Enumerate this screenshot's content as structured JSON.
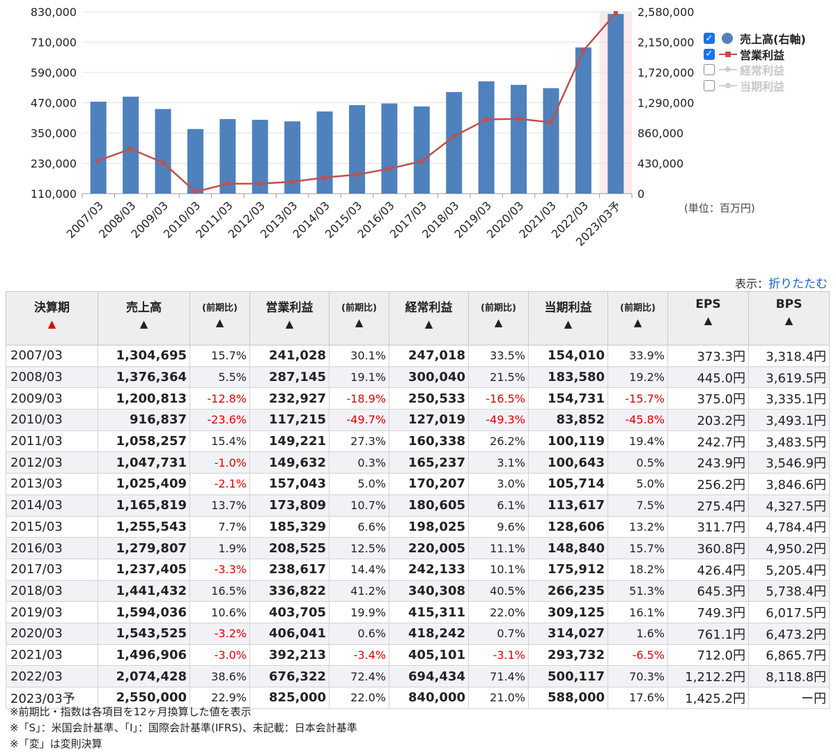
{
  "chart_data": {
    "type": "bar+line",
    "categories": [
      "2007/03",
      "2008/03",
      "2009/03",
      "2010/03",
      "2011/03",
      "2012/03",
      "2013/03",
      "2014/03",
      "2015/03",
      "2016/03",
      "2017/03",
      "2018/03",
      "2019/03",
      "2020/03",
      "2021/03",
      "2022/03",
      "2023/03予"
    ],
    "series": [
      {
        "name": "売上高(右軸)",
        "type": "bar",
        "axis": "right",
        "color": "#4f81bd",
        "visible": true,
        "values": [
          1304695,
          1376364,
          1200813,
          916837,
          1058257,
          1047731,
          1025409,
          1165819,
          1255543,
          1279807,
          1237405,
          1441432,
          1594036,
          1543525,
          1496906,
          2074428,
          2550000
        ]
      },
      {
        "name": "営業利益",
        "type": "line",
        "axis": "left",
        "color": "#c0504d",
        "visible": true,
        "values": [
          241028,
          287145,
          232927,
          117215,
          149221,
          149632,
          157043,
          173809,
          185329,
          208525,
          238617,
          336822,
          403705,
          406041,
          392213,
          676322,
          825000
        ]
      },
      {
        "name": "経常利益",
        "type": "line",
        "axis": "left",
        "color": "#c8c8c8",
        "visible": false
      },
      {
        "name": "当期利益",
        "type": "line",
        "axis": "left",
        "color": "#c8c8c8",
        "visible": false
      }
    ],
    "left_axis": {
      "ticks": [
        "830,000",
        "710,000",
        "590,000",
        "470,000",
        "350,000",
        "230,000",
        "110,000"
      ],
      "range": [
        110000,
        830000
      ]
    },
    "right_axis": {
      "ticks": [
        "2,580,000",
        "2,150,000",
        "1,720,000",
        "1,290,000",
        "860,000",
        "430,000",
        "0"
      ],
      "range": [
        0,
        2580000
      ]
    },
    "highlight_category": "2023/03予",
    "legend_position": "right",
    "unit_label": "(単位：百万円)"
  },
  "display": {
    "label": "表示：",
    "toggle": "折りたたむ"
  },
  "table": {
    "headers": [
      {
        "label": "決算期",
        "sort": "▲",
        "active": true
      },
      {
        "label": "売上高",
        "sort": "▲"
      },
      {
        "label": "(前期比)",
        "sort": "▲",
        "small": true
      },
      {
        "label": "営業利益",
        "sort": "▲"
      },
      {
        "label": "(前期比)",
        "sort": "▲",
        "small": true
      },
      {
        "label": "経常利益",
        "sort": "▲"
      },
      {
        "label": "(前期比)",
        "sort": "▲",
        "small": true
      },
      {
        "label": "当期利益",
        "sort": "▲"
      },
      {
        "label": "(前期比)",
        "sort": "▲",
        "small": true
      },
      {
        "label": "EPS",
        "sort": "▲"
      },
      {
        "label": "BPS",
        "sort": "▲"
      }
    ],
    "rows": [
      [
        "2007/03",
        "1,304,695",
        "15.7%",
        "241,028",
        "30.1%",
        "247,018",
        "33.5%",
        "154,010",
        "33.9%",
        "373.3円",
        "3,318.4円"
      ],
      [
        "2008/03",
        "1,376,364",
        "5.5%",
        "287,145",
        "19.1%",
        "300,040",
        "21.5%",
        "183,580",
        "19.2%",
        "445.0円",
        "3,619.5円"
      ],
      [
        "2009/03",
        "1,200,813",
        "-12.8%",
        "232,927",
        "-18.9%",
        "250,533",
        "-16.5%",
        "154,731",
        "-15.7%",
        "375.0円",
        "3,335.1円"
      ],
      [
        "2010/03",
        "916,837",
        "-23.6%",
        "117,215",
        "-49.7%",
        "127,019",
        "-49.3%",
        "83,852",
        "-45.8%",
        "203.2円",
        "3,493.1円"
      ],
      [
        "2011/03",
        "1,058,257",
        "15.4%",
        "149,221",
        "27.3%",
        "160,338",
        "26.2%",
        "100,119",
        "19.4%",
        "242.7円",
        "3,483.5円"
      ],
      [
        "2012/03",
        "1,047,731",
        "-1.0%",
        "149,632",
        "0.3%",
        "165,237",
        "3.1%",
        "100,643",
        "0.5%",
        "243.9円",
        "3,546.9円"
      ],
      [
        "2013/03",
        "1,025,409",
        "-2.1%",
        "157,043",
        "5.0%",
        "170,207",
        "3.0%",
        "105,714",
        "5.0%",
        "256.2円",
        "3,846.6円"
      ],
      [
        "2014/03",
        "1,165,819",
        "13.7%",
        "173,809",
        "10.7%",
        "180,605",
        "6.1%",
        "113,617",
        "7.5%",
        "275.4円",
        "4,327.5円"
      ],
      [
        "2015/03",
        "1,255,543",
        "7.7%",
        "185,329",
        "6.6%",
        "198,025",
        "9.6%",
        "128,606",
        "13.2%",
        "311.7円",
        "4,784.4円"
      ],
      [
        "2016/03",
        "1,279,807",
        "1.9%",
        "208,525",
        "12.5%",
        "220,005",
        "11.1%",
        "148,840",
        "15.7%",
        "360.8円",
        "4,950.2円"
      ],
      [
        "2017/03",
        "1,237,405",
        "-3.3%",
        "238,617",
        "14.4%",
        "242,133",
        "10.1%",
        "175,912",
        "18.2%",
        "426.4円",
        "5,205.4円"
      ],
      [
        "2018/03",
        "1,441,432",
        "16.5%",
        "336,822",
        "41.2%",
        "340,308",
        "40.5%",
        "266,235",
        "51.3%",
        "645.3円",
        "5,738.4円"
      ],
      [
        "2019/03",
        "1,594,036",
        "10.6%",
        "403,705",
        "19.9%",
        "415,311",
        "22.0%",
        "309,125",
        "16.1%",
        "749.3円",
        "6,017.5円"
      ],
      [
        "2020/03",
        "1,543,525",
        "-3.2%",
        "406,041",
        "0.6%",
        "418,242",
        "0.7%",
        "314,027",
        "1.6%",
        "761.1円",
        "6,473.2円"
      ],
      [
        "2021/03",
        "1,496,906",
        "-3.0%",
        "392,213",
        "-3.4%",
        "405,101",
        "-3.1%",
        "293,732",
        "-6.5%",
        "712.0円",
        "6,865.7円"
      ],
      [
        "2022/03",
        "2,074,428",
        "38.6%",
        "676,322",
        "72.4%",
        "694,434",
        "71.4%",
        "500,117",
        "70.3%",
        "1,212.2円",
        "8,118.8円"
      ],
      [
        "2023/03予",
        "2,550,000",
        "22.9%",
        "825,000",
        "22.0%",
        "840,000",
        "21.0%",
        "588,000",
        "17.6%",
        "1,425.2円",
        "ー円"
      ]
    ]
  },
  "notes": [
    "※前期比・指数は各項目を12ヶ月換算した値を表示",
    "※「S」：米国会計基準、「I」：国際会計基準(IFRS)、未記載：日本会計基準",
    "※「変」は変則決算"
  ]
}
